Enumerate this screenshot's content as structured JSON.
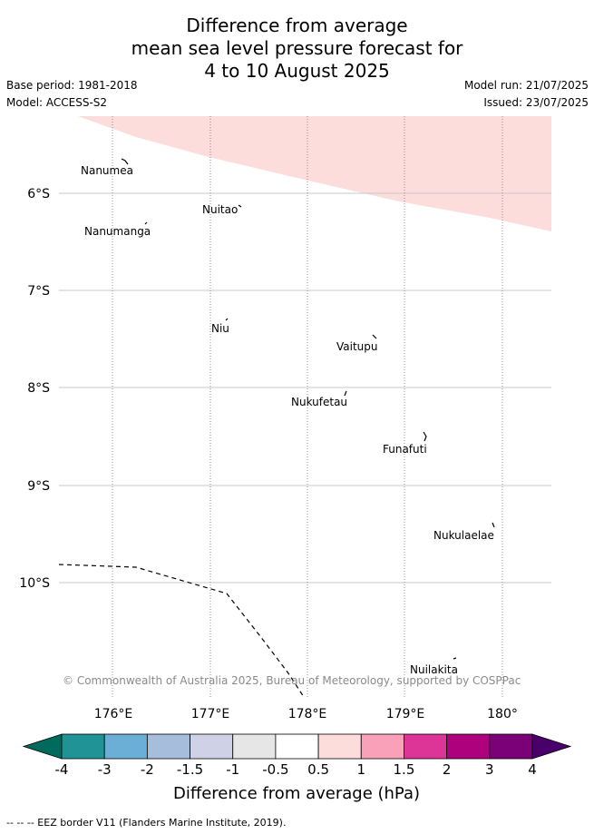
{
  "title": {
    "line1": "Difference from average",
    "line2": "mean sea level pressure forecast for",
    "line3": "4 to 10 August 2025"
  },
  "meta": {
    "base_period": "Base period: 1981-2018",
    "model": "Model: ACCESS-S2",
    "model_run": "Model run: 21/07/2025",
    "issued": "Issued: 23/07/2025"
  },
  "map": {
    "lat_labels": [
      "6°S",
      "7°S",
      "8°S",
      "9°S",
      "10°S"
    ],
    "lon_labels": [
      "176°E",
      "177°E",
      "178°E",
      "179°E",
      "180°"
    ],
    "places": [
      "Nanumea",
      "Nuitao",
      "Nanumanga",
      "Niu",
      "Vaitupu",
      "Nukufetau",
      "Funafuti",
      "Nukulaelae",
      "Nuilakita"
    ],
    "copyright": "© Commonwealth of Australia 2025, Bureau of Meteorology, supported by COSPPac",
    "anomaly_region_color": "#fddcdc"
  },
  "colorbar": {
    "tick_labels": [
      "-4",
      "-3",
      "-2",
      "-1.5",
      "-1",
      "-0.5",
      "0.5",
      "1",
      "1.5",
      "2",
      "3",
      "4"
    ],
    "colors": [
      "#006b5c",
      "#1f9396",
      "#6baed6",
      "#a6bddb",
      "#cfd1e6",
      "#e6e6e6",
      "#ffffff",
      "#fddcdc",
      "#f9a1b8",
      "#dd3497",
      "#ae017e",
      "#7a0177",
      "#49006a"
    ],
    "label": "Difference from average (hPa)"
  },
  "footer": "-- -- -- EEZ border V11 (Flanders Marine Institute, 2019)."
}
